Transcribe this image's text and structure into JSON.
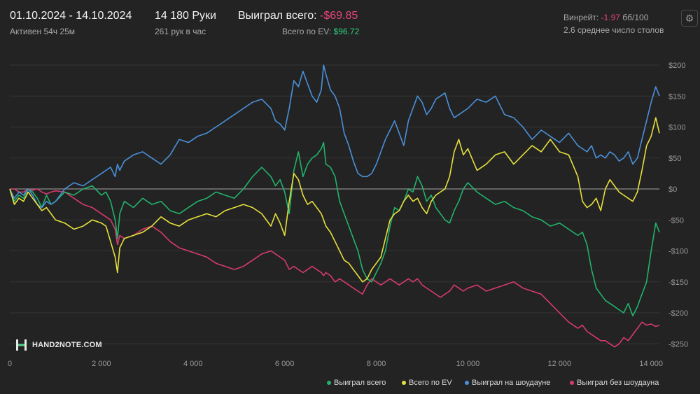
{
  "header": {
    "date_range": "01.10.2024 - 14.10.2024",
    "active_time": "Активен 54ч 25м",
    "hands": "14 180 Руки",
    "hands_per_hour": "261 рук в час",
    "won_label": "Выиграл всего:",
    "won_value": "-$69.85",
    "ev_label": "Всего по EV:",
    "ev_value": "$96.72",
    "winrate_label": "Винрейт:",
    "winrate_value": "-1.97",
    "winrate_unit": "бб/100",
    "avg_tables": "2.6 среднее число столов"
  },
  "logo": {
    "text": "HAND2NOTE.COM"
  },
  "icons": {
    "settings": "gear-icon",
    "logo": "hand2note-logo-icon"
  },
  "chart_data": {
    "type": "line",
    "xlim": [
      0,
      14180
    ],
    "ylim": [
      -260,
      210
    ],
    "x_ticks": [
      0,
      2000,
      4000,
      6000,
      8000,
      10000,
      12000,
      14000
    ],
    "x_tick_labels": [
      "0",
      "2 000",
      "4 000",
      "6 000",
      "8 000",
      "10 000",
      "12 000",
      "14 000"
    ],
    "y_ticks": [
      200,
      150,
      100,
      50,
      0,
      -50,
      -100,
      -150,
      -200,
      -250
    ],
    "y_tick_labels": [
      "$200",
      "$150",
      "$100",
      "$50",
      "$0",
      "-$50",
      "-$100",
      "-$150",
      "-$200",
      "-$250"
    ],
    "grid": true,
    "legend_position": "bottom-right",
    "series": [
      {
        "name": "Выиграл всего",
        "color": "#21b36b",
        "x": [
          0,
          100,
          200,
          300,
          400,
          500,
          600,
          700,
          800,
          900,
          1000,
          1200,
          1400,
          1600,
          1800,
          2000,
          2100,
          2200,
          2300,
          2350,
          2400,
          2500,
          2700,
          2900,
          3100,
          3300,
          3500,
          3700,
          3900,
          4100,
          4300,
          4500,
          4700,
          4900,
          5100,
          5300,
          5500,
          5700,
          5800,
          5900,
          6000,
          6100,
          6200,
          6300,
          6400,
          6500,
          6600,
          6700,
          6800,
          6850,
          6900,
          7000,
          7100,
          7200,
          7300,
          7400,
          7500,
          7600,
          7700,
          7800,
          7900,
          8000,
          8100,
          8200,
          8300,
          8400,
          8500,
          8600,
          8700,
          8800,
          8900,
          9000,
          9100,
          9200,
          9300,
          9400,
          9500,
          9600,
          9700,
          9800,
          9900,
          10000,
          10200,
          10400,
          10600,
          10800,
          11000,
          11200,
          11400,
          11600,
          11800,
          12000,
          12200,
          12400,
          12500,
          12600,
          12700,
          12800,
          12900,
          13000,
          13100,
          13200,
          13300,
          13400,
          13500,
          13600,
          13700,
          13800,
          13900,
          14000,
          14100,
          14180
        ],
        "y": [
          0,
          -20,
          -10,
          -15,
          0,
          -5,
          -15,
          -30,
          -10,
          -25,
          -20,
          -5,
          -10,
          0,
          5,
          -10,
          -5,
          -20,
          -50,
          -80,
          -40,
          -20,
          -30,
          -15,
          -25,
          -20,
          -35,
          -40,
          -30,
          -20,
          -15,
          -5,
          -10,
          -15,
          0,
          20,
          35,
          20,
          5,
          15,
          -5,
          -40,
          30,
          60,
          20,
          40,
          50,
          55,
          65,
          75,
          40,
          35,
          20,
          -20,
          -40,
          -60,
          -80,
          -100,
          -130,
          -145,
          -150,
          -135,
          -120,
          -100,
          -60,
          -30,
          -35,
          -20,
          0,
          -5,
          20,
          5,
          -20,
          -10,
          -30,
          -40,
          -50,
          -55,
          -35,
          -20,
          0,
          10,
          -5,
          -15,
          -25,
          -20,
          -30,
          -35,
          -45,
          -50,
          -60,
          -55,
          -65,
          -75,
          -70,
          -90,
          -130,
          -160,
          -170,
          -180,
          -185,
          -190,
          -195,
          -200,
          -185,
          -205,
          -190,
          -170,
          -150,
          -100,
          -55,
          -70
        ]
      },
      {
        "name": "Всего по EV",
        "color": "#e6e03c",
        "x": [
          0,
          100,
          200,
          300,
          400,
          500,
          600,
          700,
          800,
          900,
          1000,
          1200,
          1400,
          1600,
          1800,
          2000,
          2100,
          2200,
          2300,
          2350,
          2400,
          2500,
          2700,
          2900,
          3100,
          3300,
          3500,
          3700,
          3900,
          4100,
          4300,
          4500,
          4700,
          4900,
          5100,
          5300,
          5500,
          5700,
          5800,
          5900,
          6000,
          6100,
          6200,
          6300,
          6400,
          6500,
          6600,
          6700,
          6800,
          6850,
          6900,
          7000,
          7100,
          7200,
          7300,
          7400,
          7500,
          7600,
          7700,
          7800,
          7900,
          8000,
          8100,
          8200,
          8300,
          8400,
          8500,
          8600,
          8700,
          8800,
          8900,
          9000,
          9100,
          9200,
          9300,
          9400,
          9500,
          9600,
          9700,
          9800,
          9900,
          10000,
          10200,
          10400,
          10600,
          10800,
          11000,
          11200,
          11400,
          11600,
          11800,
          12000,
          12200,
          12400,
          12500,
          12600,
          12700,
          12800,
          12900,
          13000,
          13100,
          13200,
          13300,
          13400,
          13500,
          13600,
          13700,
          13800,
          13900,
          14000,
          14100,
          14180
        ],
        "y": [
          0,
          -25,
          -15,
          -20,
          -5,
          -15,
          -25,
          -35,
          -30,
          -40,
          -50,
          -55,
          -65,
          -60,
          -50,
          -55,
          -60,
          -85,
          -110,
          -135,
          -95,
          -80,
          -75,
          -70,
          -60,
          -45,
          -55,
          -60,
          -50,
          -45,
          -40,
          -45,
          -35,
          -30,
          -25,
          -30,
          -40,
          -60,
          -40,
          -55,
          -75,
          -20,
          25,
          15,
          -10,
          -25,
          -20,
          -30,
          -40,
          -50,
          -60,
          -70,
          -85,
          -100,
          -115,
          -120,
          -130,
          -140,
          -150,
          -145,
          -130,
          -120,
          -110,
          -80,
          -50,
          -40,
          -35,
          -20,
          -10,
          -20,
          -15,
          -30,
          -40,
          -20,
          -10,
          -5,
          0,
          20,
          60,
          80,
          55,
          65,
          30,
          40,
          55,
          60,
          40,
          55,
          70,
          60,
          80,
          60,
          55,
          20,
          -20,
          -30,
          -25,
          -15,
          -35,
          0,
          15,
          5,
          -5,
          -10,
          -15,
          -20,
          -5,
          30,
          70,
          85,
          115,
          90
        ]
      },
      {
        "name": "Выиграл на шоудауне",
        "color": "#4a90d9",
        "x": [
          0,
          100,
          200,
          300,
          400,
          500,
          600,
          700,
          800,
          900,
          1000,
          1200,
          1400,
          1600,
          1800,
          2000,
          2100,
          2200,
          2300,
          2350,
          2400,
          2500,
          2700,
          2900,
          3100,
          3300,
          3500,
          3700,
          3900,
          4100,
          4300,
          4500,
          4700,
          4900,
          5100,
          5300,
          5500,
          5700,
          5800,
          5900,
          6000,
          6100,
          6200,
          6300,
          6400,
          6500,
          6600,
          6700,
          6800,
          6850,
          6900,
          7000,
          7100,
          7200,
          7300,
          7400,
          7500,
          7600,
          7700,
          7800,
          7900,
          8000,
          8100,
          8200,
          8300,
          8400,
          8500,
          8600,
          8700,
          8800,
          8900,
          9000,
          9100,
          9200,
          9300,
          9400,
          9500,
          9600,
          9700,
          9800,
          9900,
          10000,
          10200,
          10400,
          10600,
          10800,
          11000,
          11200,
          11400,
          11600,
          11800,
          12000,
          12200,
          12400,
          12500,
          12600,
          12700,
          12800,
          12900,
          13000,
          13100,
          13200,
          13300,
          13400,
          13500,
          13600,
          13700,
          13800,
          13900,
          14000,
          14100,
          14180
        ],
        "y": [
          0,
          -15,
          -5,
          -10,
          0,
          -10,
          -25,
          -30,
          -20,
          -25,
          -20,
          0,
          10,
          5,
          15,
          25,
          30,
          35,
          20,
          40,
          30,
          45,
          55,
          60,
          50,
          40,
          55,
          80,
          75,
          85,
          90,
          100,
          110,
          120,
          130,
          140,
          145,
          130,
          110,
          105,
          95,
          130,
          175,
          165,
          190,
          170,
          150,
          140,
          160,
          200,
          185,
          160,
          150,
          130,
          90,
          70,
          45,
          25,
          20,
          20,
          25,
          40,
          60,
          80,
          95,
          110,
          90,
          70,
          110,
          130,
          150,
          140,
          120,
          130,
          145,
          150,
          155,
          130,
          115,
          120,
          125,
          130,
          145,
          140,
          150,
          120,
          115,
          100,
          80,
          95,
          85,
          75,
          90,
          70,
          65,
          60,
          70,
          50,
          55,
          50,
          60,
          55,
          45,
          50,
          60,
          40,
          50,
          80,
          110,
          140,
          165,
          150
        ]
      },
      {
        "name": "Выиграл без шоудауна",
        "color": "#d63a6e",
        "x": [
          0,
          100,
          200,
          300,
          400,
          500,
          600,
          700,
          800,
          900,
          1000,
          1200,
          1400,
          1600,
          1800,
          2000,
          2100,
          2200,
          2300,
          2350,
          2400,
          2500,
          2700,
          2900,
          3100,
          3300,
          3500,
          3700,
          3900,
          4100,
          4300,
          4500,
          4700,
          4900,
          5100,
          5300,
          5500,
          5700,
          5800,
          5900,
          6000,
          6100,
          6200,
          6300,
          6400,
          6500,
          6600,
          6700,
          6800,
          6850,
          6900,
          7000,
          7100,
          7200,
          7300,
          7400,
          7500,
          7600,
          7700,
          7800,
          7900,
          8000,
          8100,
          8200,
          8300,
          8400,
          8500,
          8600,
          8700,
          8800,
          8900,
          9000,
          9100,
          9200,
          9300,
          9400,
          9500,
          9600,
          9700,
          9800,
          9900,
          10000,
          10200,
          10400,
          10600,
          10800,
          11000,
          11200,
          11400,
          11600,
          11800,
          12000,
          12200,
          12400,
          12500,
          12600,
          12700,
          12800,
          12900,
          13000,
          13100,
          13200,
          13300,
          13400,
          13500,
          13600,
          13700,
          13800,
          13900,
          14000,
          14100,
          14180
        ],
        "y": [
          0,
          0,
          -5,
          -5,
          0,
          -2,
          0,
          -5,
          -8,
          -5,
          -3,
          -5,
          -15,
          -25,
          -30,
          -40,
          -45,
          -50,
          -65,
          -90,
          -75,
          -80,
          -75,
          -65,
          -60,
          -70,
          -85,
          -95,
          -100,
          -105,
          -110,
          -120,
          -125,
          -130,
          -125,
          -115,
          -105,
          -100,
          -105,
          -110,
          -115,
          -130,
          -125,
          -130,
          -135,
          -130,
          -125,
          -130,
          -135,
          -140,
          -135,
          -140,
          -150,
          -145,
          -150,
          -155,
          -160,
          -165,
          -170,
          -155,
          -145,
          -150,
          -155,
          -150,
          -145,
          -150,
          -155,
          -150,
          -145,
          -150,
          -145,
          -155,
          -160,
          -165,
          -170,
          -175,
          -170,
          -165,
          -155,
          -160,
          -165,
          -160,
          -155,
          -165,
          -160,
          -155,
          -150,
          -160,
          -165,
          -170,
          -185,
          -200,
          -215,
          -225,
          -220,
          -230,
          -235,
          -240,
          -245,
          -245,
          -250,
          -255,
          -250,
          -240,
          -245,
          -235,
          -225,
          -215,
          -220,
          -218,
          -222,
          -220
        ]
      }
    ]
  }
}
